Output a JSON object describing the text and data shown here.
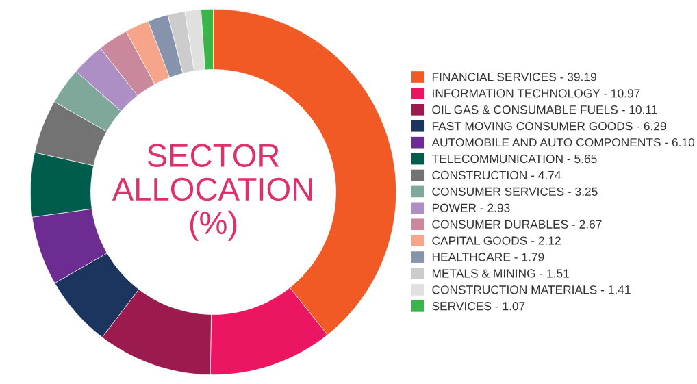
{
  "chart_data": {
    "type": "donut",
    "title": "SECTOR\nALLOCATION\n(%)",
    "categories": [
      "FINANCIAL SERVICES - 39.19",
      "INFORMATION TECHNOLOGY - 10.97",
      "OIL GAS & CONSUMABLE FUELS - 10.11",
      "FAST MOVING CONSUMER GOODS - 6.29",
      "AUTOMOBILE AND AUTO COMPONENTS - 6.10",
      "TELECOMMUNICATION - 5.65",
      "CONSTRUCTION - 4.74",
      "CONSUMER SERVICES - 3.25",
      "POWER - 2.93",
      "CONSUMER DURABLES - 2.67",
      "CAPITAL GOODS - 2.12",
      "HEALTHCARE - 1.79",
      "METALS & MINING - 1.51",
      "CONSTRUCTION MATERIALS - 1.41",
      "SERVICES - 1.07"
    ],
    "values": [
      39.19,
      10.97,
      10.11,
      6.29,
      6.1,
      5.65,
      4.74,
      3.25,
      2.93,
      2.67,
      2.12,
      1.79,
      1.51,
      1.41,
      1.07
    ],
    "colors": [
      "#f15a24",
      "#ec1561",
      "#9b1b4f",
      "#1b355e",
      "#6d2c91",
      "#005c4b",
      "#737373",
      "#7fa89a",
      "#ad8fc6",
      "#c9889c",
      "#f7a58a",
      "#8593ad",
      "#cccccc",
      "#e0e0e0",
      "#3ab54a"
    ],
    "legend": "right"
  }
}
